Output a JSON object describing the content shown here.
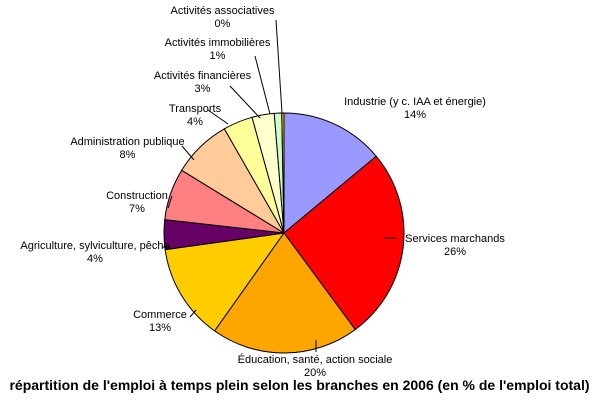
{
  "chart_data": {
    "type": "pie",
    "title": "répartition de l'emploi à temps plein selon les branches en 2006 (en % de l'emploi total)",
    "slices": [
      {
        "label": "Industrie (y c. IAA et énergie)",
        "value_label": "14%",
        "value": 14,
        "color": "#9999ff"
      },
      {
        "label": "Services marchands",
        "value_label": "26%",
        "value": 26,
        "color": "#ff0000"
      },
      {
        "label": "Éducation, santé, action sociale",
        "value_label": "20%",
        "value": 20,
        "color": "#ffa500"
      },
      {
        "label": "Commerce",
        "value_label": "13%",
        "value": 13,
        "color": "#ffcc00"
      },
      {
        "label": "Agriculture, sylviculture, pêche",
        "value_label": "4%",
        "value": 4,
        "color": "#660066"
      },
      {
        "label": "Construction",
        "value_label": "7%",
        "value": 7,
        "color": "#ff8080"
      },
      {
        "label": "Administration publique",
        "value_label": "8%",
        "value": 8,
        "color": "#ffcc99"
      },
      {
        "label": "Transports",
        "value_label": "4%",
        "value": 4,
        "color": "#ffff99"
      },
      {
        "label": "Activités financières",
        "value_label": "3%",
        "value": 3,
        "color": "#ffffcc"
      },
      {
        "label": "Activités immobilières",
        "value_label": "1%",
        "value": 1,
        "color": "#ccffcc"
      },
      {
        "label": "Activités associatives",
        "value_label": "0%",
        "value": 0.3,
        "color": "#ffcc00"
      }
    ]
  }
}
